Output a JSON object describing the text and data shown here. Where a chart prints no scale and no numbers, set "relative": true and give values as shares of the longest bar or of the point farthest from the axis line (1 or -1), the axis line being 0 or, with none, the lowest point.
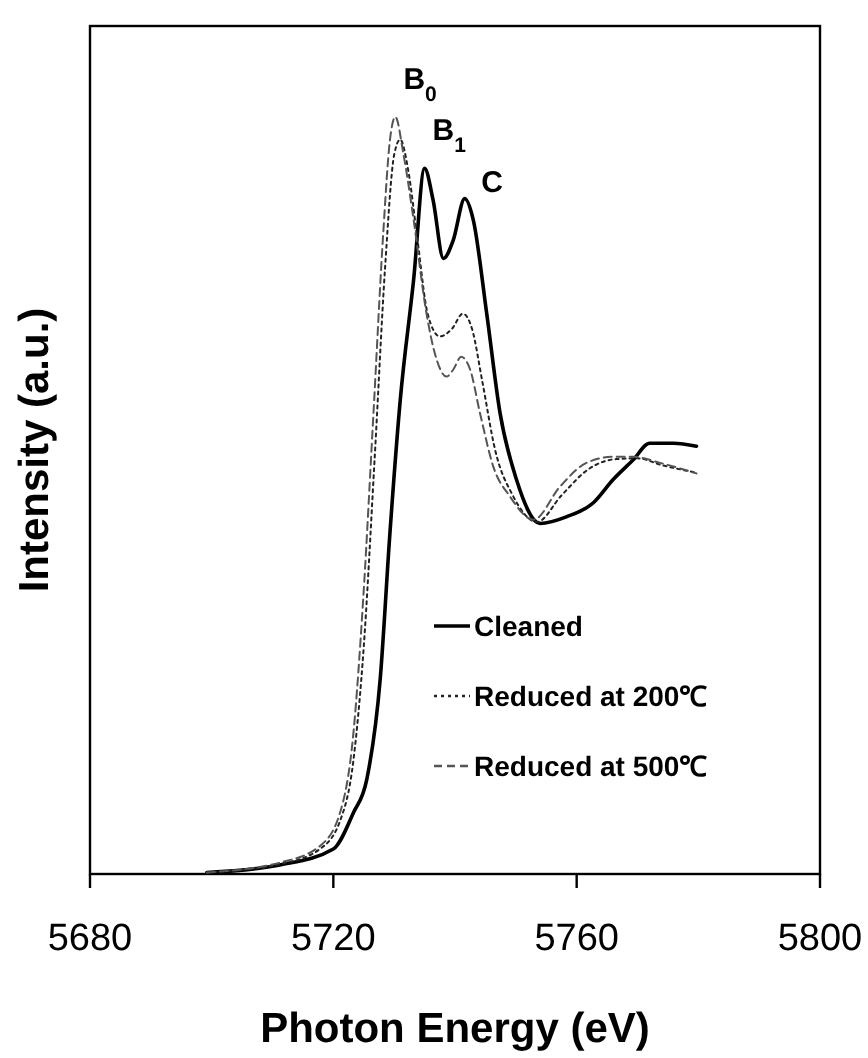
{
  "chart_data": {
    "type": "line",
    "xlabel": "Photon Energy (eV)",
    "ylabel": "Intensity (a.u.)",
    "relative": true,
    "xlim": [
      5680,
      5800
    ],
    "xticks": [
      5680,
      5720,
      5760,
      5800
    ],
    "legend": "bottom right",
    "grid": false,
    "marker": "none",
    "annotations": [
      {
        "text": "B$_{0}$",
        "x": 5730.2,
        "y": 1.0
      },
      {
        "text": "B$_{1}$",
        "x": 5735,
        "y": 0.932
      },
      {
        "text": "C",
        "x": 5743,
        "y": 0.864
      }
    ],
    "series": [
      {
        "name": "Cleaned",
        "color": "#000000",
        "line_style": "solid",
        "x": [
          5699.2,
          5711.2,
          5720,
          5723.3,
          5725.5,
          5727.7,
          5729.3,
          5731,
          5733.2,
          5735,
          5736.4,
          5738.1,
          5739.7,
          5741.6,
          5743,
          5745.2,
          5747.4,
          5750.1,
          5754,
          5758.4,
          5762.7,
          5766,
          5769.3,
          5772,
          5775.9,
          5779.7
        ],
        "values": [
          0.002,
          0.012,
          0.033,
          0.081,
          0.125,
          0.257,
          0.45,
          0.626,
          0.785,
          0.932,
          0.89,
          0.813,
          0.837,
          0.892,
          0.864,
          0.741,
          0.609,
          0.521,
          0.463,
          0.472,
          0.49,
          0.521,
          0.547,
          0.569,
          0.569,
          0.565
        ]
      },
      {
        "name": "Reduced at 200℃",
        "color": "#222222",
        "line_style": "dotted",
        "x": [
          5699.2,
          5711.2,
          5717.8,
          5721.1,
          5723.3,
          5725,
          5726.8,
          5728.5,
          5730,
          5731,
          5732.3,
          5733.8,
          5735.5,
          5737.5,
          5739.5,
          5741.3,
          5742.8,
          5744.5,
          5746.6,
          5749.5,
          5753.5,
          5757.5,
          5762,
          5766.5,
          5770,
          5774,
          5779.7
        ],
        "values": [
          0.002,
          0.013,
          0.033,
          0.07,
          0.15,
          0.3,
          0.55,
          0.8,
          0.95,
          0.97,
          0.93,
          0.84,
          0.74,
          0.71,
          0.72,
          0.74,
          0.72,
          0.65,
          0.56,
          0.5,
          0.465,
          0.5,
          0.535,
          0.548,
          0.549,
          0.54,
          0.53
        ]
      },
      {
        "name": "Reduced at 500℃",
        "color": "#555555",
        "line_style": "dashed",
        "x": [
          5699.2,
          5711.2,
          5717.8,
          5721.1,
          5723.3,
          5724.9,
          5726.6,
          5728.2,
          5729.3,
          5730.2,
          5731.5,
          5733.2,
          5735.3,
          5737,
          5738.6,
          5739.7,
          5741,
          5742.5,
          5744.1,
          5746.3,
          5749,
          5752.9,
          5757.3,
          5761.6,
          5766,
          5769.3,
          5773.7,
          5779.7
        ],
        "values": [
          0.002,
          0.015,
          0.037,
          0.081,
          0.186,
          0.362,
          0.609,
          0.846,
          0.969,
          1.0,
          0.952,
          0.864,
          0.741,
          0.679,
          0.657,
          0.666,
          0.683,
          0.666,
          0.609,
          0.538,
          0.499,
          0.468,
          0.512,
          0.543,
          0.551,
          0.551,
          0.543,
          0.529
        ]
      }
    ]
  }
}
